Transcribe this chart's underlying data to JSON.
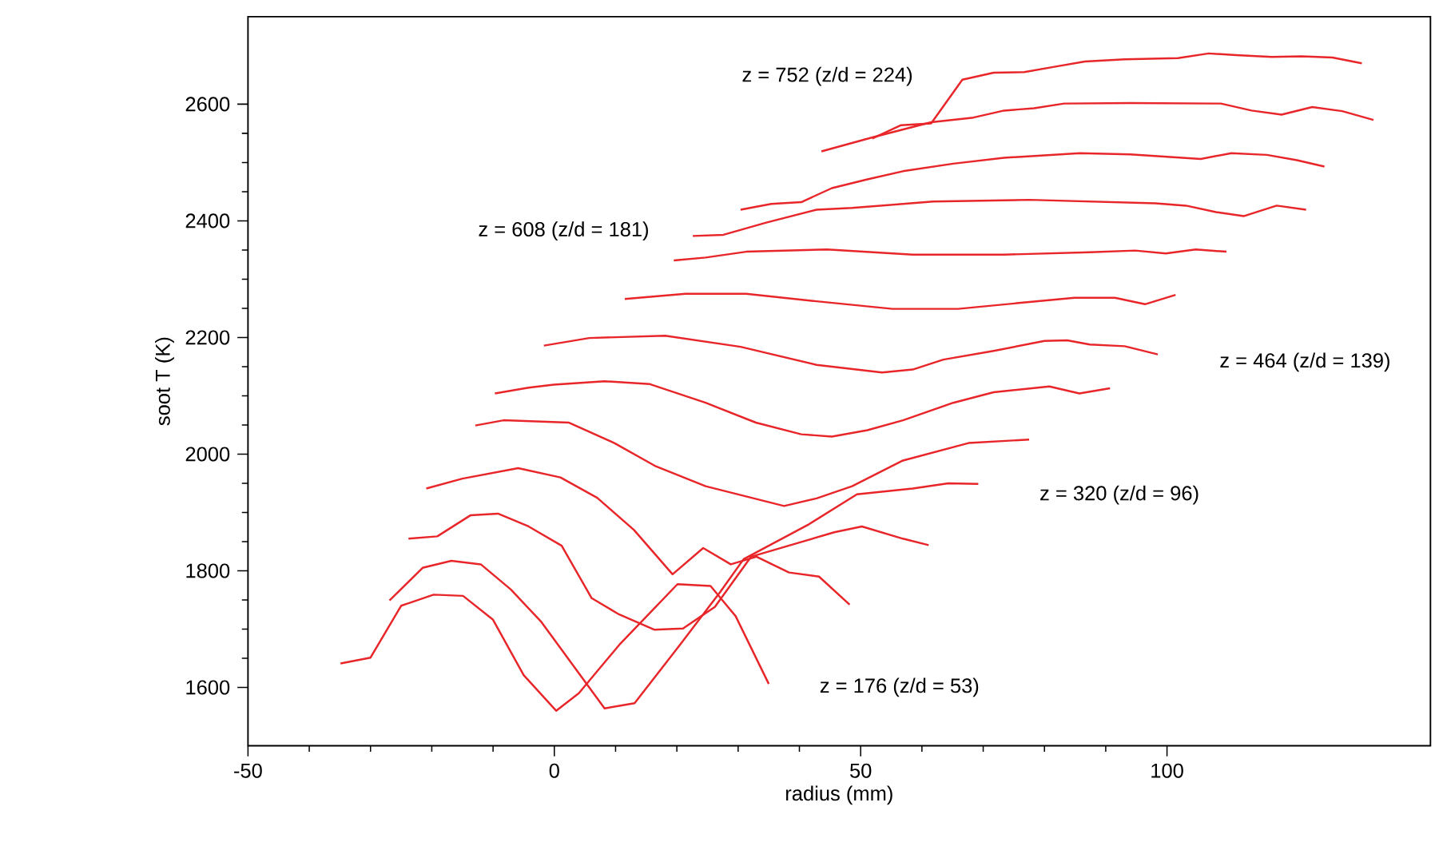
{
  "chart_data": {
    "type": "line",
    "xlabel": "radius (mm)",
    "ylabel": "soot T (K)",
    "xlim": [
      -50,
      143
    ],
    "ylim": [
      1500,
      2750
    ],
    "xticks": [
      -50,
      0,
      50,
      100
    ],
    "yticks": [
      1600,
      1800,
      2000,
      2200,
      2400,
      2600
    ],
    "grid": false,
    "marker": "none",
    "line_style": "solid",
    "annotations": [
      "z = 752 (z/d = 224)",
      "z = 608 (z/d = 181)",
      "z = 464 (z/d = 139)",
      "z = 320 (z/d = 96)",
      "z = 176 (z/d = 53)"
    ],
    "series": [
      {
        "color": "#e8262a",
        "x": [
          -34.9,
          -30.0,
          -25.0,
          -19.7,
          -14.9,
          -10.0,
          -5.0,
          0.3,
          4.0,
          10.6,
          20.1,
          25.5,
          29.6,
          35.0
        ],
        "values": [
          1641,
          1651,
          1740,
          1759,
          1757,
          1716,
          1621,
          1560,
          1590,
          1673,
          1777,
          1774,
          1722,
          1606
        ]
      },
      {
        "color": "#e8262a",
        "x": [
          -26.9,
          -21.5,
          -16.8,
          -12.0,
          -7.1,
          -2.1,
          8.2,
          13.1,
          20.5,
          27.1,
          30.9,
          41.6,
          49.4,
          58.5,
          64.3,
          69.2
        ],
        "values": [
          1749,
          1805,
          1817,
          1811,
          1768,
          1712,
          1564,
          1573,
          1673,
          1764,
          1820,
          1880,
          1931,
          1941,
          1950,
          1949
        ]
      },
      {
        "color": "#e8262a",
        "x": [
          -23.8,
          -19.1,
          -13.7,
          -9.2,
          -4.2,
          1.2,
          6.1,
          10.6,
          16.3,
          21.0,
          26.2,
          32.1,
          45.7,
          50.2,
          56.9,
          61.1
        ],
        "values": [
          1855,
          1859,
          1895,
          1898,
          1876,
          1843,
          1753,
          1725,
          1699,
          1701,
          1738,
          1824,
          1866,
          1876,
          1855,
          1844
        ]
      },
      {
        "color": "#e8262a",
        "x": [
          -20.9,
          -15.0,
          -5.9,
          1.0,
          7.0,
          13.0,
          19.3,
          24.3,
          28.8,
          33.0,
          38.3,
          43.2,
          48.2
        ],
        "values": [
          1941,
          1958,
          1976,
          1960,
          1925,
          1870,
          1794,
          1839,
          1811,
          1824,
          1797,
          1790,
          1742
        ]
      },
      {
        "color": "#e8262a",
        "x": [
          -12.9,
          -8.3,
          2.4,
          9.8,
          16.4,
          24.7,
          37.5,
          42.8,
          48.6,
          56.9,
          67.6,
          77.5
        ],
        "values": [
          2049,
          2058,
          2054,
          2019,
          1980,
          1945,
          1911,
          1924,
          1945,
          1989,
          2019,
          2025
        ]
      },
      {
        "color": "#e8262a",
        "x": [
          -9.7,
          -4.2,
          -0.1,
          8.2,
          15.6,
          24.7,
          32.9,
          40.3,
          45.3,
          51.1,
          56.9,
          65.1,
          71.7,
          80.8,
          85.7,
          90.7
        ],
        "values": [
          2104,
          2114,
          2119,
          2125,
          2120,
          2088,
          2054,
          2034,
          2030,
          2041,
          2058,
          2088,
          2106,
          2116,
          2104,
          2113
        ]
      },
      {
        "color": "#e8262a",
        "x": [
          -1.7,
          5.7,
          18.1,
          30.4,
          42.8,
          53.5,
          58.5,
          63.5,
          71.7,
          80.0,
          83.7,
          87.4,
          93.1,
          98.5
        ],
        "values": [
          2186,
          2199,
          2203,
          2184,
          2153,
          2140,
          2145,
          2162,
          2177,
          2194,
          2195,
          2188,
          2185,
          2171
        ]
      },
      {
        "color": "#e8262a",
        "x": [
          11.5,
          21.4,
          31.3,
          42.8,
          55.2,
          65.9,
          75.8,
          84.9,
          91.5,
          96.4,
          101.4
        ],
        "values": [
          2266,
          2275,
          2275,
          2262,
          2249,
          2249,
          2259,
          2268,
          2268,
          2257,
          2273
        ]
      },
      {
        "color": "#e8262a",
        "x": [
          19.5,
          24.7,
          31.3,
          44.5,
          58.5,
          73.4,
          87.4,
          94.8,
          99.8,
          104.7,
          109.7
        ],
        "values": [
          2332,
          2337,
          2347,
          2351,
          2342,
          2342,
          2346,
          2349,
          2344,
          2351,
          2347
        ]
      },
      {
        "color": "#e8262a",
        "x": [
          22.6,
          27.6,
          34.6,
          42.8,
          48.6,
          61.8,
          77.5,
          98.1,
          103.1,
          108.0,
          112.5,
          117.9,
          122.7
        ],
        "values": [
          2374,
          2376,
          2397,
          2419,
          2422,
          2433,
          2436,
          2430,
          2426,
          2415,
          2408,
          2426,
          2419
        ]
      },
      {
        "color": "#e8262a",
        "x": [
          30.4,
          35.4,
          40.3,
          45.3,
          51.1,
          56.9,
          65.1,
          73.4,
          85.8,
          94.0,
          105.5,
          110.5,
          116.3,
          121.2,
          125.7
        ],
        "values": [
          2419,
          2429,
          2432,
          2456,
          2471,
          2485,
          2498,
          2508,
          2516,
          2514,
          2506,
          2516,
          2513,
          2504,
          2493
        ]
      },
      {
        "color": "#e8262a",
        "x": [
          43.6,
          51.9,
          61.5,
          68.4,
          73.4,
          78.3,
          83.2,
          94.0,
          108.8,
          113.8,
          118.7,
          123.7,
          128.6,
          133.7
        ],
        "values": [
          2519,
          2543,
          2569,
          2577,
          2589,
          2593,
          2601,
          2602,
          2601,
          2589,
          2582,
          2595,
          2588,
          2573
        ]
      },
      {
        "color": "#e8262a",
        "x": [
          51.9,
          56.6,
          61.5,
          66.6,
          71.7,
          76.7,
          81.6,
          86.6,
          93.1,
          101.8,
          106.8,
          111.3,
          117.1,
          122.0,
          127.0,
          131.8
        ],
        "values": [
          2541,
          2564,
          2567,
          2642,
          2654,
          2655,
          2664,
          2673,
          2677,
          2679,
          2687,
          2684,
          2681,
          2682,
          2680,
          2670
        ]
      }
    ]
  }
}
